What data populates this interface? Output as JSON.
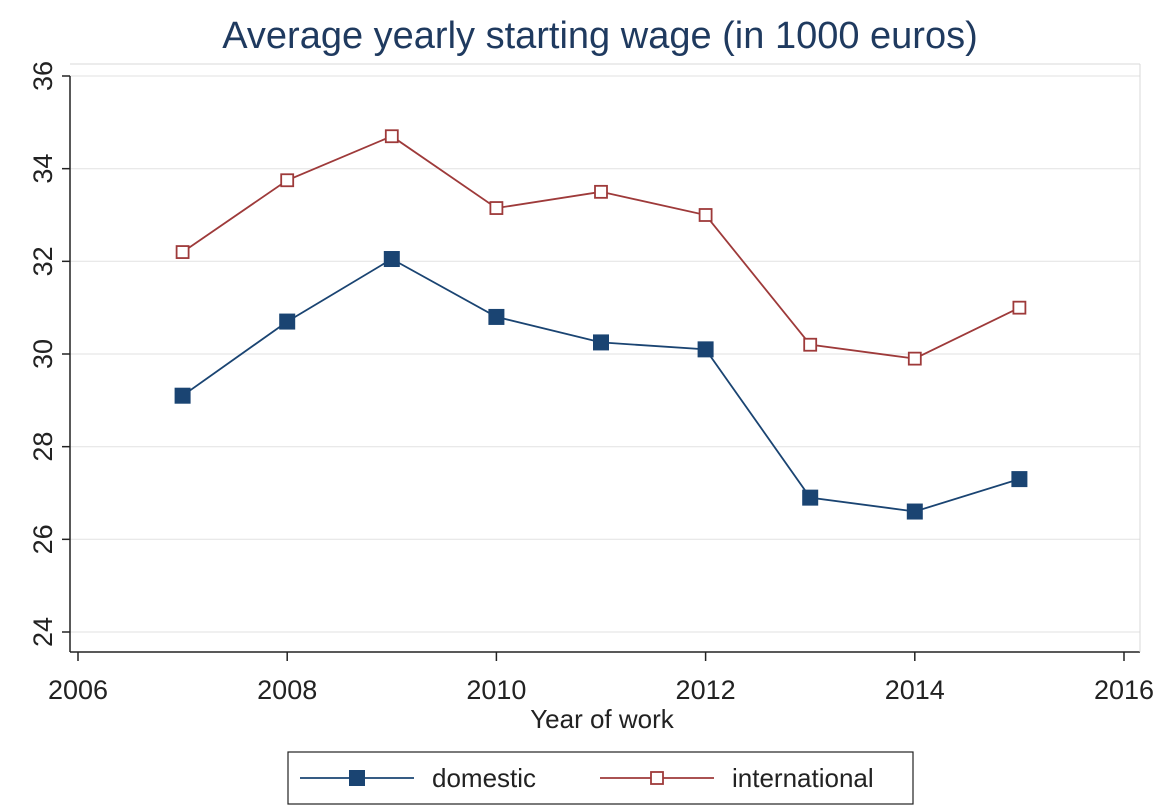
{
  "chart_data": {
    "type": "line",
    "title": "Average yearly starting wage (in 1000 euros)",
    "xlabel": "Year of work",
    "ylabel": "",
    "xlim": [
      2006,
      2016
    ],
    "ylim": [
      24,
      36
    ],
    "x_ticks": [
      "2006",
      "2008",
      "2010",
      "2012",
      "2014",
      "2016"
    ],
    "y_ticks": [
      "24",
      "26",
      "28",
      "30",
      "32",
      "34",
      "36"
    ],
    "grid": true,
    "legend_position": "bottom",
    "x": [
      2007,
      2008,
      2009,
      2010,
      2011,
      2012,
      2013,
      2014,
      2015
    ],
    "series": [
      {
        "name": "domestic",
        "color": "#1a4472",
        "marker": "filled-square",
        "values": [
          29.1,
          30.7,
          32.05,
          30.8,
          30.25,
          30.1,
          26.9,
          26.6,
          27.3
        ]
      },
      {
        "name": "international",
        "color": "#9e3a3a",
        "marker": "hollow-square",
        "values": [
          32.2,
          33.75,
          34.7,
          33.15,
          33.5,
          33.0,
          30.2,
          29.9,
          31.0
        ]
      }
    ]
  }
}
